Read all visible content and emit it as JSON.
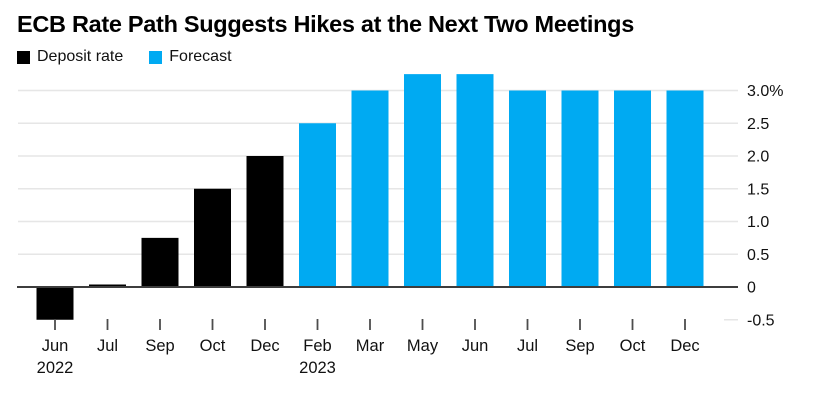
{
  "header": {
    "title": "ECB Rate Path Suggests Hikes at the Next Two Meetings"
  },
  "legend": [
    {
      "label": "Deposit rate",
      "color": "#000000"
    },
    {
      "label": "Forecast",
      "color": "#00aaf2"
    }
  ],
  "chart_data": {
    "type": "bar",
    "title": "ECB Rate Path Suggests Hikes at the Next Two Meetings",
    "unit": "%",
    "categories": [
      "Jun",
      "Jul",
      "Sep",
      "Oct",
      "Dec",
      "Feb",
      "Mar",
      "May",
      "Jun",
      "Jul",
      "Sep",
      "Oct",
      "Dec"
    ],
    "year_labels": [
      {
        "index": 0,
        "label": "2022"
      },
      {
        "index": 5,
        "label": "2023"
      }
    ],
    "series": [
      {
        "name": "Deposit rate",
        "color": "#000000",
        "values": [
          -0.5,
          0,
          0.75,
          1.5,
          2.0,
          null,
          null,
          null,
          null,
          null,
          null,
          null,
          null
        ]
      },
      {
        "name": "Forecast",
        "color": "#00aaf2",
        "values": [
          null,
          null,
          null,
          null,
          null,
          2.5,
          3.0,
          3.25,
          3.25,
          3.0,
          3.0,
          3.0,
          3.0
        ]
      }
    ],
    "y_axis": {
      "side": "right",
      "ylim": [
        -0.5,
        3.25
      ],
      "ticks": [
        {
          "label": "3.0%",
          "value": 3.0
        },
        {
          "label": "2.5",
          "value": 2.5
        },
        {
          "label": "2.0",
          "value": 2.0
        },
        {
          "label": "1.5",
          "value": 1.5
        },
        {
          "label": "1.0",
          "value": 1.0
        },
        {
          "label": "0.5",
          "value": 0.5
        },
        {
          "label": "0",
          "value": 0
        },
        {
          "label": "-0.5",
          "value": -0.5
        }
      ]
    },
    "grid": true,
    "legend_position": "top-left",
    "colors": {
      "background": "#ffffff",
      "gridline": "#e6e6e6",
      "zero_line": "#3d3d3d",
      "axis_tick": "#4d4d4d",
      "text": "#111111"
    }
  }
}
